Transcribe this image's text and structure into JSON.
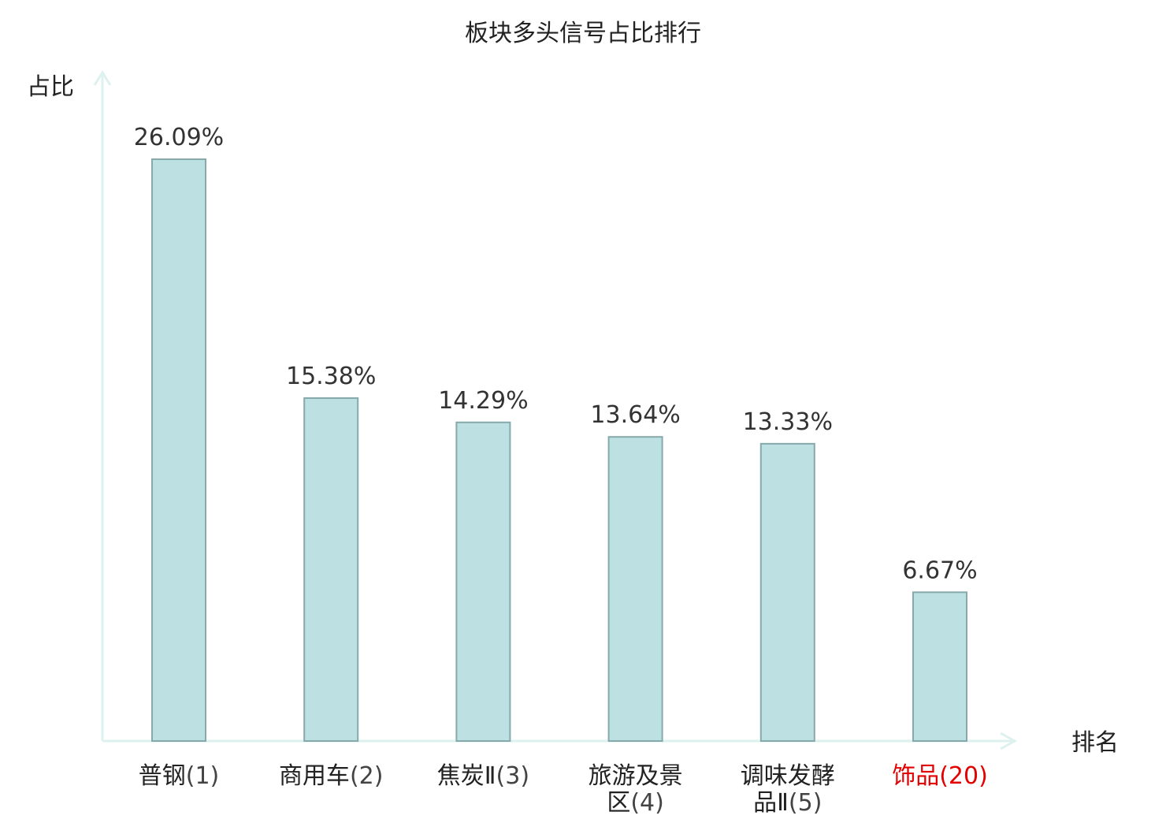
{
  "chart_data": {
    "type": "bar",
    "title": "板块多头信号占比排行",
    "xlabel": "排名",
    "ylabel": "占比",
    "categories": [
      {
        "name_lines": [
          "普钢"
        ],
        "rank": "(1)",
        "highlight": false
      },
      {
        "name_lines": [
          "商用车"
        ],
        "rank": "(2)",
        "highlight": false
      },
      {
        "name_lines": [
          "焦炭Ⅱ"
        ],
        "rank": "(3)",
        "highlight": false
      },
      {
        "name_lines": [
          "旅游及景",
          "区"
        ],
        "rank": "(4)",
        "highlight": false
      },
      {
        "name_lines": [
          "调味发酵",
          "品Ⅱ"
        ],
        "rank": "(5)",
        "highlight": false
      },
      {
        "name_lines": [
          "饰品"
        ],
        "rank": "(20)",
        "highlight": true
      }
    ],
    "values": [
      26.09,
      15.38,
      14.29,
      13.64,
      13.33,
      6.67
    ],
    "value_labels": [
      "26.09%",
      "15.38%",
      "14.29%",
      "13.64%",
      "13.33%",
      "6.67%"
    ],
    "ylim": [
      0,
      26.09
    ],
    "grid": false,
    "legend": "none",
    "colors": {
      "bar_fill": "#bde0e3",
      "bar_stroke": "#86a9ac",
      "axis": "#ddf1ee",
      "text": "#222222",
      "highlight": "#e30000"
    }
  }
}
